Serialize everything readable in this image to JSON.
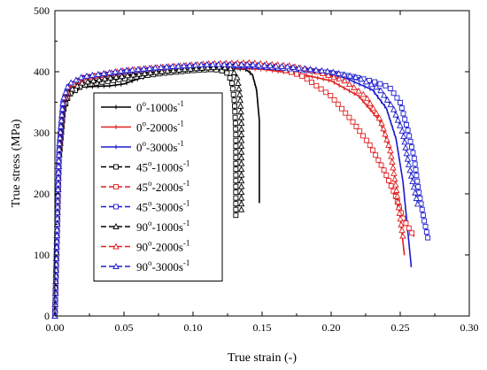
{
  "chart_data": {
    "type": "line",
    "xlabel": "True strain (-)",
    "ylabel": "True stress (MPa)",
    "xlim": [
      0,
      0.3
    ],
    "ylim": [
      0,
      500
    ],
    "x_ticks": [
      "0.00",
      "0.05",
      "0.10",
      "0.15",
      "0.20",
      "0.25",
      "0.30"
    ],
    "y_ticks": [
      "0",
      "100",
      "200",
      "300",
      "400",
      "500"
    ],
    "grid": false,
    "legend_position": "center-left",
    "series": [
      {
        "name": "0o-1000s-1",
        "legend": {
          "angle": "0",
          "rate": "-1000s",
          "exp": "-1"
        },
        "color": "#000000",
        "dash": "solid",
        "marker": "vbar",
        "points": [
          [
            0.0,
            0
          ],
          [
            0.003,
            250
          ],
          [
            0.006,
            330
          ],
          [
            0.01,
            360
          ],
          [
            0.02,
            375
          ],
          [
            0.03,
            376
          ],
          [
            0.04,
            377
          ],
          [
            0.05,
            380
          ],
          [
            0.06,
            388
          ],
          [
            0.07,
            395
          ],
          [
            0.08,
            399
          ],
          [
            0.1,
            402
          ],
          [
            0.12,
            404
          ],
          [
            0.13,
            405
          ],
          [
            0.138,
            404
          ],
          [
            0.143,
            395
          ],
          [
            0.146,
            370
          ],
          [
            0.148,
            320
          ],
          [
            0.148,
            260
          ],
          [
            0.148,
            185
          ]
        ]
      },
      {
        "name": "0o-2000s-1",
        "legend": {
          "angle": "0",
          "rate": "-2000s",
          "exp": "-1"
        },
        "color": "#e02020",
        "dash": "solid",
        "marker": "vbar",
        "points": [
          [
            0.0,
            0
          ],
          [
            0.003,
            260
          ],
          [
            0.006,
            340
          ],
          [
            0.01,
            365
          ],
          [
            0.02,
            380
          ],
          [
            0.05,
            392
          ],
          [
            0.08,
            400
          ],
          [
            0.1,
            404
          ],
          [
            0.13,
            406
          ],
          [
            0.15,
            404
          ],
          [
            0.18,
            395
          ],
          [
            0.2,
            385
          ],
          [
            0.22,
            360
          ],
          [
            0.235,
            320
          ],
          [
            0.243,
            270
          ],
          [
            0.248,
            200
          ],
          [
            0.251,
            140
          ],
          [
            0.253,
            100
          ]
        ]
      },
      {
        "name": "0o-3000s-1",
        "legend": {
          "angle": "0",
          "rate": "-3000s",
          "exp": "-1"
        },
        "color": "#1c1ccf",
        "dash": "solid",
        "marker": "vbar",
        "points": [
          [
            0.0,
            0
          ],
          [
            0.003,
            260
          ],
          [
            0.006,
            345
          ],
          [
            0.01,
            370
          ],
          [
            0.02,
            385
          ],
          [
            0.05,
            395
          ],
          [
            0.08,
            402
          ],
          [
            0.1,
            405
          ],
          [
            0.13,
            407
          ],
          [
            0.16,
            406
          ],
          [
            0.19,
            400
          ],
          [
            0.21,
            390
          ],
          [
            0.23,
            370
          ],
          [
            0.24,
            340
          ],
          [
            0.247,
            290
          ],
          [
            0.252,
            220
          ],
          [
            0.255,
            150
          ],
          [
            0.258,
            80
          ]
        ]
      },
      {
        "name": "45o-1000s-1",
        "legend": {
          "angle": "45",
          "rate": "-1000s",
          "exp": "-1"
        },
        "color": "#000000",
        "dash": "dashed",
        "marker": "square",
        "points": [
          [
            0.0,
            0
          ],
          [
            0.003,
            255
          ],
          [
            0.006,
            335
          ],
          [
            0.01,
            362
          ],
          [
            0.02,
            378
          ],
          [
            0.04,
            385
          ],
          [
            0.06,
            392
          ],
          [
            0.08,
            398
          ],
          [
            0.1,
            402
          ],
          [
            0.115,
            404
          ],
          [
            0.124,
            400
          ],
          [
            0.128,
            385
          ],
          [
            0.13,
            350
          ],
          [
            0.131,
            300
          ],
          [
            0.131,
            250
          ],
          [
            0.131,
            200
          ],
          [
            0.131,
            160
          ]
        ]
      },
      {
        "name": "45o-2000s-1",
        "legend": {
          "angle": "45",
          "rate": "-2000s",
          "exp": "-1"
        },
        "color": "#e02020",
        "dash": "dashed",
        "marker": "square",
        "points": [
          [
            0.0,
            0
          ],
          [
            0.003,
            265
          ],
          [
            0.006,
            345
          ],
          [
            0.01,
            370
          ],
          [
            0.02,
            385
          ],
          [
            0.05,
            398
          ],
          [
            0.08,
            405
          ],
          [
            0.11,
            410
          ],
          [
            0.14,
            412
          ],
          [
            0.16,
            408
          ],
          [
            0.18,
            392
          ],
          [
            0.2,
            360
          ],
          [
            0.215,
            320
          ],
          [
            0.228,
            280
          ],
          [
            0.238,
            240
          ],
          [
            0.246,
            200
          ],
          [
            0.252,
            160
          ],
          [
            0.26,
            130
          ]
        ]
      },
      {
        "name": "45o-3000s-1",
        "legend": {
          "angle": "45",
          "rate": "-3000s",
          "exp": "-1"
        },
        "color": "#1c1ccf",
        "dash": "dashed",
        "marker": "square",
        "points": [
          [
            0.0,
            0
          ],
          [
            0.003,
            270
          ],
          [
            0.006,
            350
          ],
          [
            0.01,
            375
          ],
          [
            0.02,
            390
          ],
          [
            0.05,
            400
          ],
          [
            0.08,
            406
          ],
          [
            0.11,
            410
          ],
          [
            0.14,
            410
          ],
          [
            0.17,
            405
          ],
          [
            0.2,
            398
          ],
          [
            0.22,
            390
          ],
          [
            0.232,
            383
          ],
          [
            0.242,
            375
          ],
          [
            0.25,
            350
          ],
          [
            0.256,
            300
          ],
          [
            0.26,
            260
          ],
          [
            0.263,
            210
          ],
          [
            0.267,
            160
          ],
          [
            0.27,
            128
          ]
        ]
      },
      {
        "name": "90o-1000s-1",
        "legend": {
          "angle": "90",
          "rate": "-1000s",
          "exp": "-1"
        },
        "color": "#000000",
        "dash": "dashed",
        "marker": "triangle",
        "points": [
          [
            0.0,
            0
          ],
          [
            0.003,
            260
          ],
          [
            0.006,
            340
          ],
          [
            0.01,
            368
          ],
          [
            0.02,
            382
          ],
          [
            0.04,
            390
          ],
          [
            0.06,
            396
          ],
          [
            0.08,
            401
          ],
          [
            0.1,
            405
          ],
          [
            0.12,
            408
          ],
          [
            0.128,
            405
          ],
          [
            0.132,
            390
          ],
          [
            0.134,
            360
          ],
          [
            0.135,
            320
          ],
          [
            0.135,
            260
          ],
          [
            0.135,
            210
          ],
          [
            0.135,
            170
          ]
        ]
      },
      {
        "name": "90o-2000s-1",
        "legend": {
          "angle": "90",
          "rate": "-2000s",
          "exp": "-1"
        },
        "color": "#e02020",
        "dash": "dashed",
        "marker": "triangle",
        "points": [
          [
            0.0,
            0
          ],
          [
            0.003,
            270
          ],
          [
            0.006,
            350
          ],
          [
            0.01,
            375
          ],
          [
            0.02,
            390
          ],
          [
            0.05,
            402
          ],
          [
            0.08,
            408
          ],
          [
            0.11,
            413
          ],
          [
            0.14,
            415
          ],
          [
            0.17,
            410
          ],
          [
            0.19,
            400
          ],
          [
            0.21,
            385
          ],
          [
            0.225,
            360
          ],
          [
            0.236,
            320
          ],
          [
            0.243,
            270
          ],
          [
            0.247,
            210
          ],
          [
            0.25,
            160
          ],
          [
            0.252,
            130
          ]
        ]
      },
      {
        "name": "90o-3000s-1",
        "legend": {
          "angle": "90",
          "rate": "-3000s",
          "exp": "-1"
        },
        "color": "#1c1ccf",
        "dash": "dashed",
        "marker": "triangle",
        "points": [
          [
            0.0,
            0
          ],
          [
            0.003,
            275
          ],
          [
            0.006,
            355
          ],
          [
            0.01,
            380
          ],
          [
            0.02,
            392
          ],
          [
            0.05,
            402
          ],
          [
            0.08,
            408
          ],
          [
            0.11,
            412
          ],
          [
            0.14,
            412
          ],
          [
            0.17,
            408
          ],
          [
            0.2,
            400
          ],
          [
            0.22,
            390
          ],
          [
            0.235,
            372
          ],
          [
            0.245,
            340
          ],
          [
            0.252,
            300
          ],
          [
            0.256,
            250
          ],
          [
            0.26,
            210
          ],
          [
            0.263,
            180
          ]
        ]
      }
    ]
  }
}
